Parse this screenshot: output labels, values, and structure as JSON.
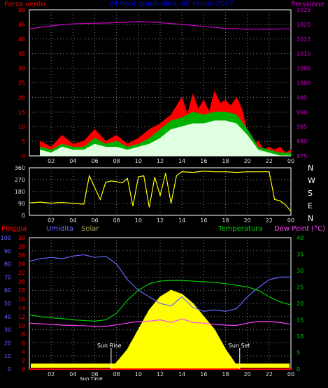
{
  "chart_data": [
    {
      "type": "line",
      "title": "24 hour graph data, 08 Fevrie 2017",
      "left_axis_label": "Forza vento",
      "right_axis_label": "Pressione",
      "x_ticks": [
        "02",
        "04",
        "06",
        "08",
        "10",
        "12",
        "14",
        "16",
        "18",
        "20",
        "22",
        "00"
      ],
      "y_left_ticks": [
        "0",
        "5",
        "10",
        "15",
        "20",
        "25",
        "30",
        "35",
        "40",
        "45",
        "50"
      ],
      "y_left_range": [
        0,
        50
      ],
      "y_right_ticks": [
        "975",
        "980",
        "985",
        "990",
        "995",
        "1000",
        "1005",
        "1010",
        "1015",
        "1020",
        "1025"
      ],
      "y_right_range": [
        975,
        1025
      ],
      "grid": true,
      "series": [
        {
          "color": "#ff0000",
          "axis": "left",
          "x": [
            1,
            2,
            3,
            4,
            5,
            6,
            7,
            8,
            9,
            10,
            11,
            12,
            13,
            13.5,
            14,
            14.5,
            15,
            15.5,
            16,
            16.5,
            17,
            17.5,
            18,
            18.5,
            19,
            19.5,
            20,
            20.5,
            21,
            21.5,
            22,
            22.5,
            23,
            23.5,
            24
          ],
          "y": [
            5,
            3,
            7,
            4,
            5,
            9,
            5,
            7,
            4,
            6,
            9,
            11,
            14,
            17,
            20,
            14,
            21,
            16,
            19,
            15,
            22,
            18,
            19,
            17,
            20,
            16,
            8,
            3,
            5,
            2,
            3,
            2,
            3,
            1,
            2
          ]
        },
        {
          "color": "#00b000",
          "axis": "left",
          "x": [
            1,
            2,
            3,
            4,
            5,
            6,
            7,
            8,
            9,
            10,
            11,
            12,
            13,
            14,
            15,
            16,
            17,
            18,
            19,
            20,
            21,
            22,
            23,
            24
          ],
          "y": [
            3,
            2,
            4,
            3,
            3,
            6,
            4,
            5,
            3,
            4,
            6,
            9,
            12,
            13,
            15,
            14,
            15,
            15,
            14,
            9,
            3,
            2,
            1,
            1
          ]
        },
        {
          "color": "#e0ffe0",
          "axis": "left",
          "x": [
            1,
            2,
            3,
            4,
            5,
            6,
            7,
            8,
            9,
            10,
            11,
            12,
            13,
            14,
            15,
            16,
            17,
            18,
            19,
            20,
            21,
            22,
            23,
            24
          ],
          "y": [
            2,
            1,
            3,
            2,
            2,
            4,
            3,
            3,
            2,
            3,
            4,
            6,
            9,
            10,
            11,
            11,
            12,
            12,
            11,
            7,
            2,
            1,
            0,
            0
          ]
        },
        {
          "color": "#cc00cc",
          "axis": "right",
          "x": [
            0,
            2,
            4,
            6,
            8,
            10,
            12,
            14,
            16,
            18,
            20,
            22,
            24
          ],
          "y": [
            1018.5,
            1019.5,
            1020.2,
            1020.4,
            1020.6,
            1021,
            1020.6,
            1020,
            1019.3,
            1018.6,
            1018.4,
            1018.4,
            1018.5
          ]
        }
      ]
    },
    {
      "type": "line",
      "x_ticks": [
        "02",
        "04",
        "06",
        "08",
        "10",
        "12",
        "14",
        "16",
        "18",
        "20",
        "22",
        "00"
      ],
      "y_ticks": [
        "0",
        "90",
        "180",
        "270",
        "360"
      ],
      "y_range": [
        0,
        360
      ],
      "right_labels": [
        "N",
        "W",
        "S",
        "E",
        "N"
      ],
      "grid": true,
      "series": [
        {
          "color": "#ffff00",
          "x": [
            0,
            1,
            2,
            3,
            4,
            5,
            5.5,
            6,
            6.5,
            7,
            7.5,
            8,
            8.5,
            9,
            9.5,
            10,
            10.5,
            11,
            11.5,
            12,
            12.5,
            13,
            13.5,
            14,
            15,
            16,
            17,
            18,
            19,
            20,
            21,
            22,
            22.5,
            23,
            23.5,
            24
          ],
          "y": [
            95,
            100,
            92,
            98,
            90,
            85,
            300,
            210,
            120,
            250,
            260,
            255,
            245,
            280,
            70,
            290,
            300,
            60,
            290,
            150,
            320,
            90,
            300,
            330,
            325,
            335,
            330,
            330,
            325,
            330,
            330,
            330,
            120,
            110,
            80,
            30
          ]
        }
      ]
    },
    {
      "type": "area",
      "series_labels": [
        "Pioggia",
        "Umidita",
        "Solar",
        "Temperatura",
        "Dew Point (°C)"
      ],
      "x_ticks": [
        "02",
        "04",
        "06",
        "08",
        "10",
        "12",
        "14",
        "16",
        "18",
        "20",
        "22",
        "00"
      ],
      "y_humidity_ticks": [
        "0",
        "10",
        "20",
        "30",
        "40",
        "50",
        "60",
        "70",
        "80",
        "90",
        "100"
      ],
      "y_humidity_range": [
        0,
        100
      ],
      "y_rain_ticks": [
        "0",
        "2",
        "4",
        "6",
        "8",
        "10",
        "12",
        "14",
        "16",
        "18",
        "20",
        "22",
        "24",
        "26",
        "28",
        "30"
      ],
      "y_rain_range": [
        0,
        30
      ],
      "y_temp_ticks": [
        "0",
        "5",
        "10",
        "15",
        "20",
        "25",
        "30",
        "35",
        "40"
      ],
      "y_temp_range": [
        0,
        40
      ],
      "sun_rise_label": "Sun Rise",
      "sun_set_label": "Sun Set",
      "sun_time_label": "Sun Time",
      "sun_rise_hour": 7.5,
      "sun_set_hour": 19.3,
      "grid": true,
      "series": [
        {
          "name": "Umidita",
          "color": "#6666ff",
          "axis": "humidity",
          "x": [
            0,
            1,
            2,
            3,
            4,
            5,
            6,
            7,
            8,
            9,
            10,
            11,
            12,
            13,
            14,
            15,
            16,
            17,
            18,
            19,
            20,
            21,
            22,
            23,
            24
          ],
          "y": [
            82,
            84,
            85,
            84,
            86,
            87,
            85,
            86,
            80,
            68,
            60,
            55,
            50,
            48,
            55,
            47,
            44,
            45,
            44,
            46,
            55,
            62,
            68,
            70,
            70
          ]
        },
        {
          "name": "Temperatura",
          "color": "#00cc00",
          "axis": "temp",
          "x": [
            0,
            1,
            2,
            3,
            4,
            5,
            6,
            7,
            8,
            9,
            10,
            11,
            12,
            13,
            14,
            15,
            16,
            17,
            18,
            19,
            20,
            21,
            22,
            23,
            24
          ],
          "y": [
            16.5,
            16,
            15.6,
            15.4,
            15,
            14.8,
            14.6,
            15,
            17,
            21,
            24,
            26,
            26.8,
            27,
            27,
            26.8,
            26.6,
            26.4,
            26,
            25.5,
            25,
            24,
            22,
            20.5,
            19.5
          ]
        },
        {
          "name": "Dew Point (°C)",
          "color": "#ff44ff",
          "axis": "temp",
          "x": [
            0,
            1,
            2,
            3,
            4,
            5,
            6,
            7,
            8,
            9,
            10,
            11,
            12,
            13,
            14,
            15,
            16,
            17,
            18,
            19,
            20,
            21,
            22,
            23,
            24
          ],
          "y": [
            14,
            13.8,
            13.6,
            13.4,
            13.3,
            13.2,
            13,
            13,
            13.5,
            14,
            14.5,
            14.6,
            15,
            14.2,
            15.3,
            14.2,
            14,
            13.6,
            13.4,
            13.3,
            14,
            14.5,
            14.5,
            14.2,
            13.6
          ]
        },
        {
          "name": "Solar",
          "color": "#ffff00",
          "axis": "humidity",
          "x": [
            0,
            7.5,
            8,
            9,
            10,
            11,
            12,
            13,
            14,
            15,
            16,
            17,
            18,
            19,
            19.3,
            24
          ],
          "y": [
            0,
            0,
            5,
            15,
            30,
            45,
            55,
            60,
            57,
            50,
            40,
            30,
            15,
            3,
            0,
            0
          ]
        },
        {
          "name": "Pioggia",
          "color": "#ff0000",
          "axis": "rain",
          "x": [
            0,
            24
          ],
          "y": [
            0,
            0
          ]
        }
      ]
    }
  ],
  "colors": {
    "background": "#000000",
    "panel_border": "#ffffff",
    "grid": "#808080",
    "title": "#0000ff",
    "wind_label": "#ff0000",
    "pressure": "#cc00cc",
    "direction_labels": "#ffffff",
    "rain_axis": "#ff0000",
    "humidity_axis": "#6666ff",
    "solar_label": "#aaaa55",
    "temp_axis": "#00cc00",
    "dew_label": "#ff44ff",
    "tick_text": "#dddddd"
  }
}
